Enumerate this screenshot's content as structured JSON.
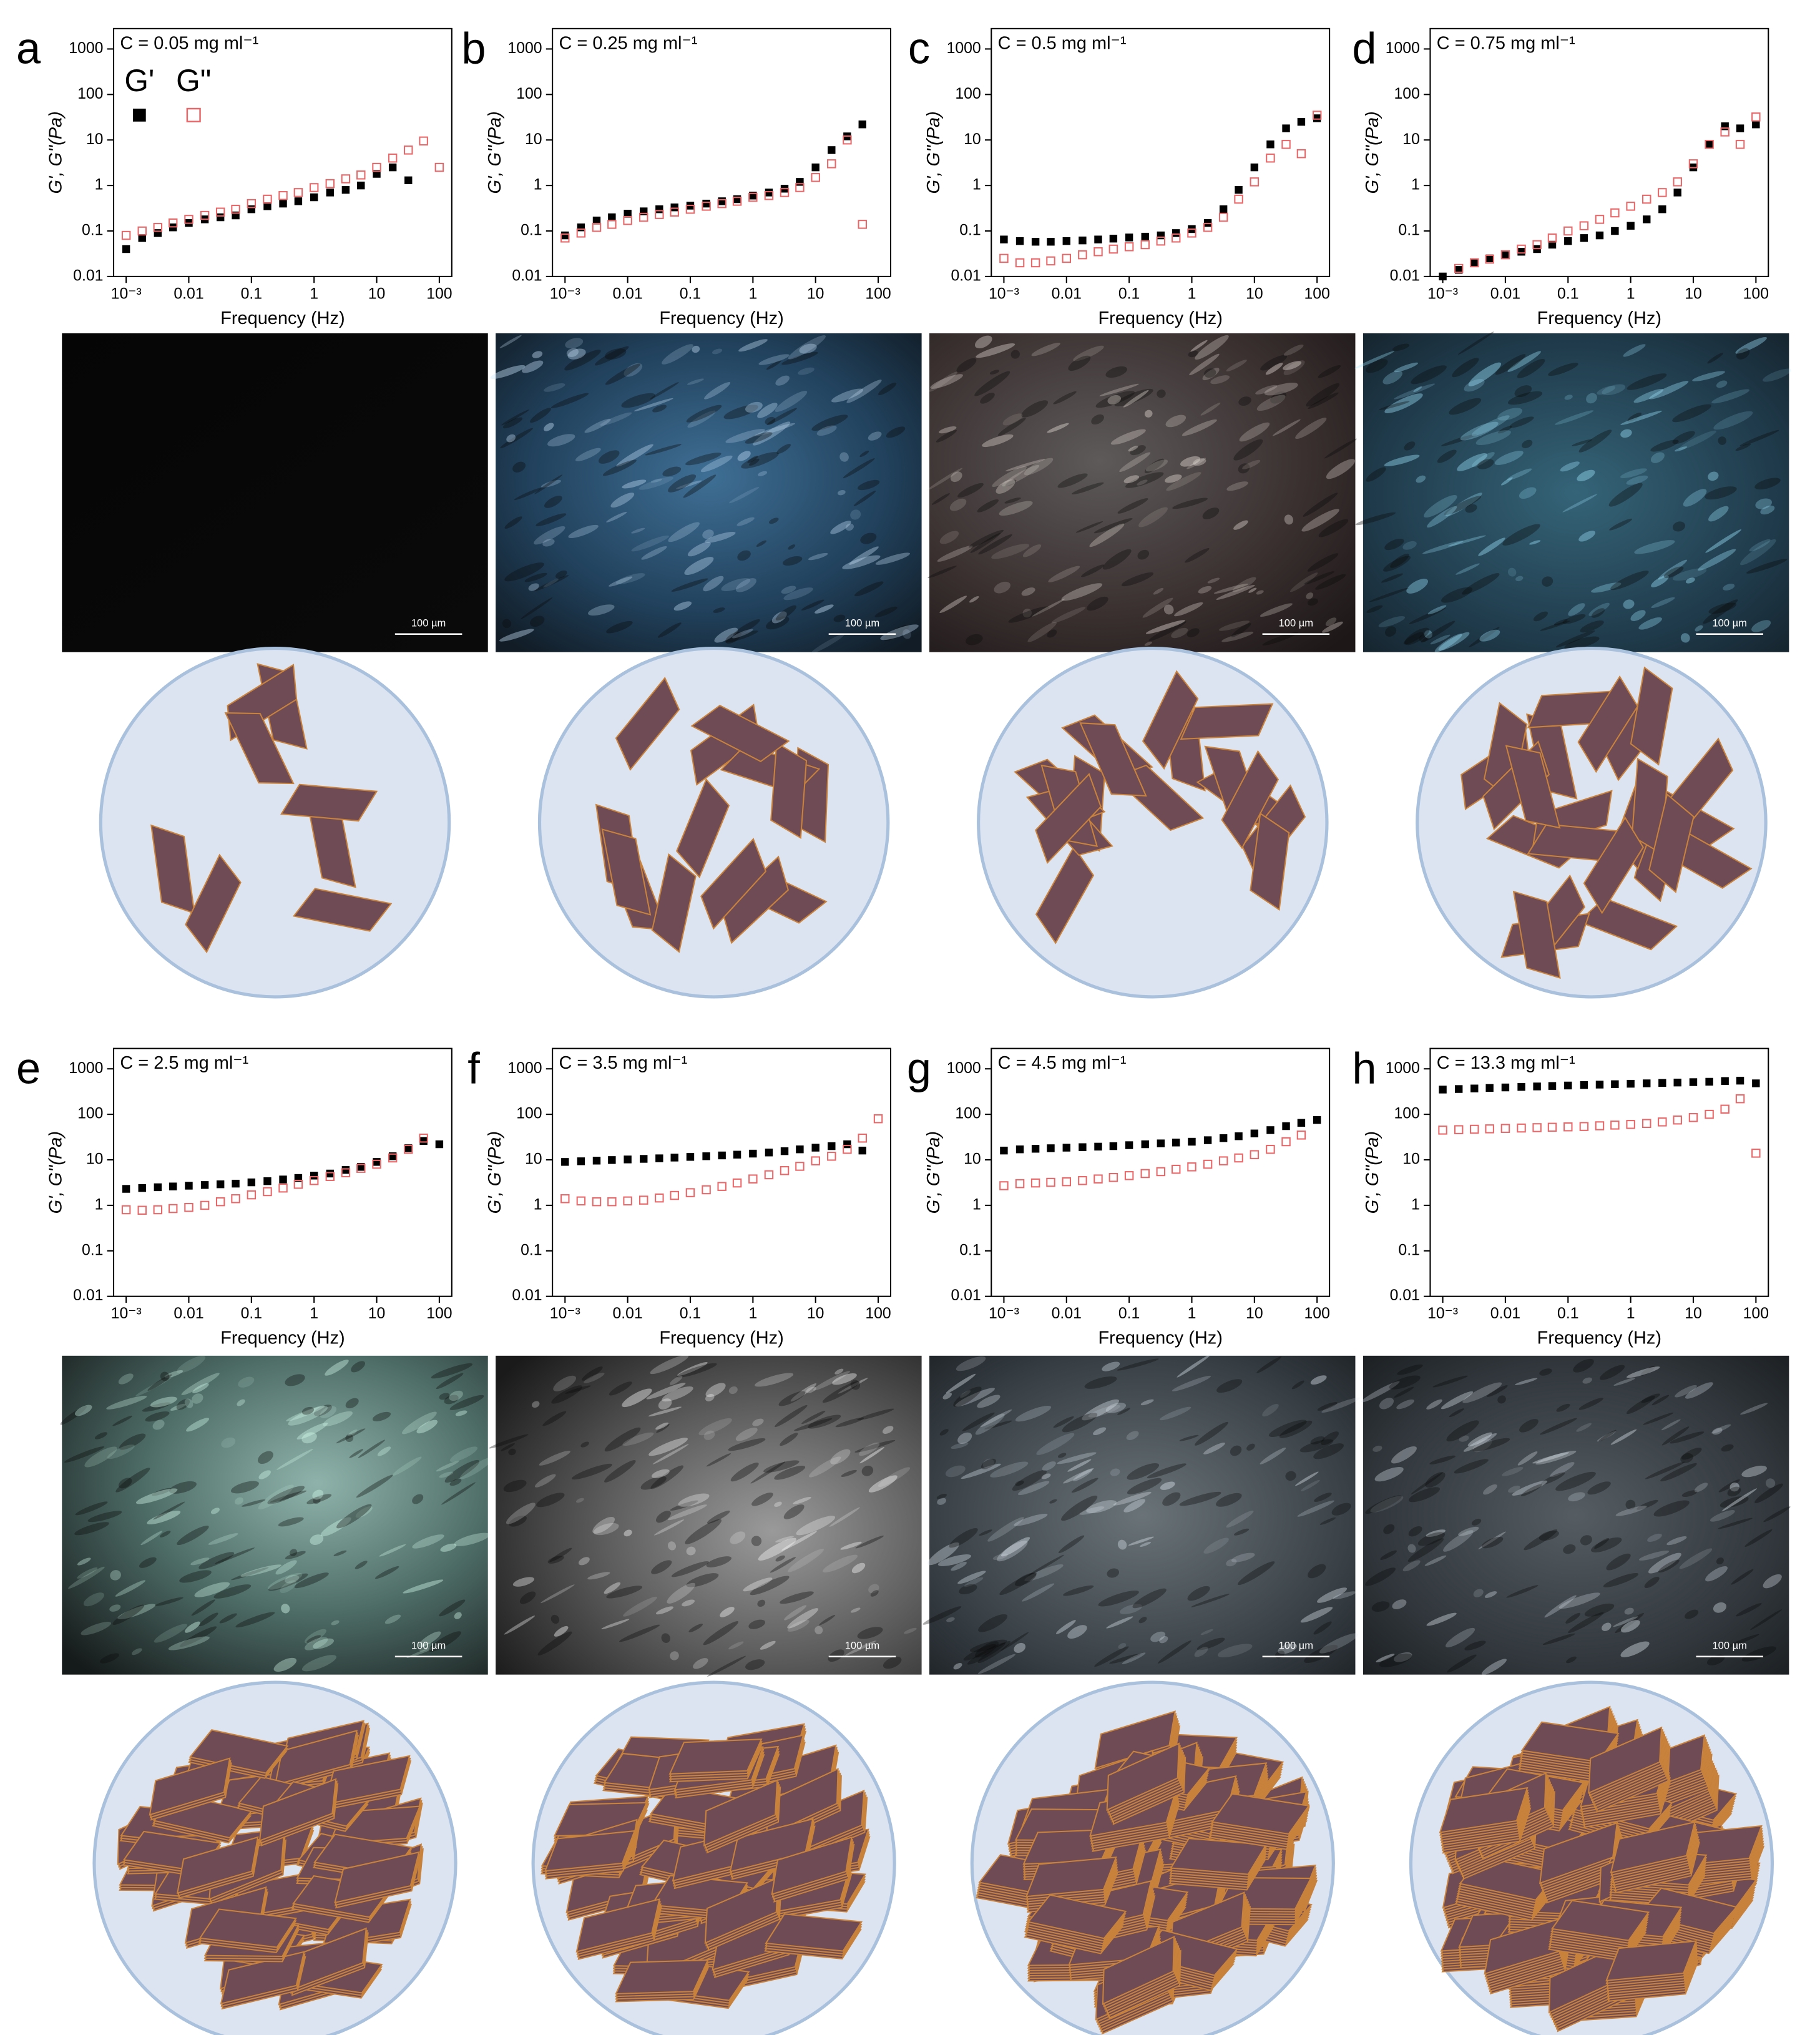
{
  "chart_data": [
    {
      "type": "scatter",
      "panel": "a",
      "annotation": "C = 0.05 mg ml⁻¹",
      "x_label": "Frequency (Hz)",
      "y_label": "G', G''(Pa)",
      "x": [
        0.001,
        0.0018,
        0.0032,
        0.0056,
        0.01,
        0.018,
        0.032,
        0.056,
        0.1,
        0.18,
        0.32,
        0.56,
        1,
        1.8,
        3.2,
        5.6,
        10,
        18,
        32,
        56,
        100
      ],
      "series": [
        {
          "name": "G'",
          "color": "#000000",
          "filled": true,
          "values": [
            0.04,
            0.07,
            0.09,
            0.12,
            0.15,
            0.18,
            0.2,
            0.22,
            0.3,
            0.35,
            0.4,
            0.45,
            0.55,
            0.7,
            0.8,
            1,
            1.8,
            2.5,
            1.3,
            null,
            null
          ]
        },
        {
          "name": "G\"",
          "color": "#e8686a",
          "filled": false,
          "values": [
            0.08,
            0.1,
            0.12,
            0.15,
            0.18,
            0.22,
            0.26,
            0.3,
            0.4,
            0.5,
            0.6,
            0.7,
            0.9,
            1.1,
            1.4,
            1.7,
            2.5,
            4,
            6,
            9.5,
            2.5
          ]
        }
      ],
      "xscale": "log",
      "yscale": "log",
      "xlim": [
        0.00063,
        158
      ],
      "ylim": [
        0.01,
        2800
      ],
      "xticks": [
        {
          "value": 0.001,
          "label": "10⁻³"
        },
        0.01,
        0.1,
        1,
        10,
        100
      ],
      "yticks": [
        0.01,
        0.1,
        1,
        10,
        100,
        1000
      ],
      "legend": "upper left"
    },
    {
      "type": "scatter",
      "panel": "b",
      "annotation": "C = 0.25 mg ml⁻¹",
      "x_label": "Frequency (Hz)",
      "y_label": "G', G''(Pa)",
      "x": [
        0.001,
        0.0018,
        0.0032,
        0.0056,
        0.01,
        0.018,
        0.032,
        0.056,
        0.1,
        0.18,
        0.32,
        0.56,
        1,
        1.8,
        3.2,
        5.6,
        10,
        18,
        32,
        56,
        100
      ],
      "series": [
        {
          "color": "#000000",
          "filled": true,
          "values": [
            0.08,
            0.12,
            0.17,
            0.2,
            0.24,
            0.27,
            0.3,
            0.33,
            0.36,
            0.4,
            0.45,
            0.5,
            0.6,
            0.7,
            0.85,
            1.2,
            2.5,
            6,
            12,
            22,
            null
          ]
        },
        {
          "color": "#e8686a",
          "filled": false,
          "values": [
            0.07,
            0.09,
            0.12,
            0.14,
            0.17,
            0.2,
            0.23,
            0.26,
            0.3,
            0.35,
            0.4,
            0.45,
            0.55,
            0.6,
            0.7,
            0.9,
            1.5,
            3,
            10,
            0.14,
            null
          ]
        }
      ],
      "xscale": "log",
      "yscale": "log",
      "xlim": [
        0.00063,
        158
      ],
      "ylim": [
        0.01,
        2800
      ],
      "xticks": [
        {
          "value": 0.001,
          "label": "10⁻³"
        },
        0.01,
        0.1,
        1,
        10,
        100
      ],
      "yticks": [
        0.01,
        0.1,
        1,
        10,
        100,
        1000
      ]
    },
    {
      "type": "scatter",
      "panel": "c",
      "annotation": "C = 0.5 mg ml⁻¹",
      "x_label": "Frequency (Hz)",
      "y_label": "G', G''(Pa)",
      "x": [
        0.001,
        0.0018,
        0.0032,
        0.0056,
        0.01,
        0.018,
        0.032,
        0.056,
        0.1,
        0.18,
        0.32,
        0.56,
        1,
        1.8,
        3.2,
        5.6,
        10,
        18,
        32,
        56,
        100
      ],
      "series": [
        {
          "color": "#000000",
          "filled": true,
          "values": [
            0.065,
            0.06,
            0.058,
            0.058,
            0.06,
            0.062,
            0.065,
            0.068,
            0.072,
            0.075,
            0.08,
            0.09,
            0.11,
            0.15,
            0.3,
            0.8,
            2.5,
            8,
            18,
            25,
            30
          ]
        },
        {
          "color": "#e8686a",
          "filled": false,
          "values": [
            0.025,
            0.02,
            0.02,
            0.022,
            0.025,
            0.03,
            0.035,
            0.04,
            0.045,
            0.05,
            0.06,
            0.07,
            0.09,
            0.12,
            0.2,
            0.5,
            1.2,
            4,
            8,
            5,
            35
          ]
        }
      ],
      "xscale": "log",
      "yscale": "log",
      "xlim": [
        0.00063,
        158
      ],
      "ylim": [
        0.01,
        2800
      ],
      "xticks": [
        {
          "value": 0.001,
          "label": "10⁻³"
        },
        0.01,
        0.1,
        1,
        10,
        100
      ],
      "yticks": [
        0.01,
        0.1,
        1,
        10,
        100,
        1000
      ]
    },
    {
      "type": "scatter",
      "panel": "d",
      "annotation": "C = 0.75 mg ml⁻¹",
      "x_label": "Frequency (Hz)",
      "y_label": "G', G''(Pa)",
      "x": [
        0.001,
        0.0018,
        0.0032,
        0.0056,
        0.01,
        0.018,
        0.032,
        0.056,
        0.1,
        0.18,
        0.32,
        0.56,
        1,
        1.8,
        3.2,
        5.6,
        10,
        18,
        32,
        56,
        100
      ],
      "series": [
        {
          "color": "#000000",
          "filled": true,
          "values": [
            0.01,
            0.014,
            0.02,
            0.025,
            0.03,
            0.035,
            0.04,
            0.05,
            0.06,
            0.07,
            0.08,
            0.1,
            0.13,
            0.18,
            0.3,
            0.7,
            2.5,
            8,
            20,
            18,
            22
          ]
        },
        {
          "color": "#e8686a",
          "filled": false,
          "values": [
            null,
            0.015,
            0.02,
            0.024,
            0.03,
            0.04,
            0.05,
            0.07,
            0.1,
            0.13,
            0.18,
            0.25,
            0.35,
            0.5,
            0.7,
            1.2,
            3,
            8,
            15,
            8,
            32
          ]
        }
      ],
      "xscale": "log",
      "yscale": "log",
      "xlim": [
        0.00063,
        158
      ],
      "ylim": [
        0.01,
        2800
      ],
      "xticks": [
        {
          "value": 0.001,
          "label": "10⁻³"
        },
        0.01,
        0.1,
        1,
        10,
        100
      ],
      "yticks": [
        0.01,
        0.1,
        1,
        10,
        100,
        1000
      ]
    },
    {
      "type": "scatter",
      "panel": "e",
      "annotation": "C = 2.5 mg ml⁻¹",
      "x_label": "Frequency (Hz)",
      "y_label": "G', G''(Pa)",
      "x": [
        0.001,
        0.0018,
        0.0032,
        0.0056,
        0.01,
        0.018,
        0.032,
        0.056,
        0.1,
        0.18,
        0.32,
        0.56,
        1,
        1.8,
        3.2,
        5.6,
        10,
        18,
        32,
        56,
        100
      ],
      "series": [
        {
          "color": "#000000",
          "filled": true,
          "values": [
            2.3,
            2.4,
            2.5,
            2.6,
            2.7,
            2.8,
            2.9,
            3,
            3.2,
            3.4,
            3.7,
            4,
            4.5,
            5,
            6,
            7,
            9,
            12,
            18,
            26,
            22
          ]
        },
        {
          "color": "#e8686a",
          "filled": false,
          "values": [
            0.8,
            0.78,
            0.8,
            0.85,
            0.9,
            1,
            1.2,
            1.4,
            1.7,
            2,
            2.4,
            2.9,
            3.5,
            4.3,
            5.2,
            6.5,
            8,
            11,
            17,
            30,
            null
          ]
        }
      ],
      "xscale": "log",
      "yscale": "log",
      "xlim": [
        0.00063,
        158
      ],
      "ylim": [
        0.01,
        2800
      ],
      "xticks": [
        {
          "value": 0.001,
          "label": "10⁻³"
        },
        0.01,
        0.1,
        1,
        10,
        100
      ],
      "yticks": [
        0.01,
        0.1,
        1,
        10,
        100,
        1000
      ]
    },
    {
      "type": "scatter",
      "panel": "f",
      "annotation": "C = 3.5 mg ml⁻¹",
      "x_label": "Frequency (Hz)",
      "y_label": "G', G''(Pa)",
      "x": [
        0.001,
        0.0018,
        0.0032,
        0.0056,
        0.01,
        0.018,
        0.032,
        0.056,
        0.1,
        0.18,
        0.32,
        0.56,
        1,
        1.8,
        3.2,
        5.6,
        10,
        18,
        32,
        56,
        100
      ],
      "series": [
        {
          "color": "#000000",
          "filled": true,
          "values": [
            9,
            9.3,
            9.6,
            9.9,
            10.2,
            10.5,
            10.8,
            11.2,
            11.6,
            12,
            12.5,
            13,
            13.7,
            14.5,
            15.5,
            17,
            18.5,
            20,
            22,
            16,
            null
          ]
        },
        {
          "color": "#e8686a",
          "filled": false,
          "values": [
            1.4,
            1.25,
            1.2,
            1.2,
            1.25,
            1.3,
            1.45,
            1.65,
            1.9,
            2.2,
            2.6,
            3.1,
            3.8,
            4.7,
            5.8,
            7.2,
            9.5,
            12,
            17,
            30,
            80
          ]
        }
      ],
      "xscale": "log",
      "yscale": "log",
      "xlim": [
        0.00063,
        158
      ],
      "ylim": [
        0.01,
        2800
      ],
      "xticks": [
        {
          "value": 0.001,
          "label": "10⁻³"
        },
        0.01,
        0.1,
        1,
        10,
        100
      ],
      "yticks": [
        0.01,
        0.1,
        1,
        10,
        100,
        1000
      ]
    },
    {
      "type": "scatter",
      "panel": "g",
      "annotation": "C = 4.5 mg ml⁻¹",
      "x_label": "Frequency (Hz)",
      "y_label": "G', G''(Pa)",
      "x": [
        0.001,
        0.0018,
        0.0032,
        0.0056,
        0.01,
        0.018,
        0.032,
        0.056,
        0.1,
        0.18,
        0.32,
        0.56,
        1,
        1.8,
        3.2,
        5.6,
        10,
        18,
        32,
        56,
        100
      ],
      "series": [
        {
          "color": "#000000",
          "filled": true,
          "values": [
            16,
            17,
            17.5,
            18,
            18.5,
            19,
            19.5,
            20,
            21,
            22,
            23,
            24,
            25,
            27,
            30,
            33,
            38,
            45,
            55,
            65,
            75
          ]
        },
        {
          "color": "#e8686a",
          "filled": false,
          "values": [
            2.7,
            3,
            3.1,
            3.2,
            3.3,
            3.5,
            3.8,
            4.1,
            4.5,
            5,
            5.5,
            6.2,
            7,
            8,
            9.5,
            11,
            13,
            17,
            25,
            35,
            null
          ]
        }
      ],
      "xscale": "log",
      "yscale": "log",
      "xlim": [
        0.00063,
        158
      ],
      "ylim": [
        0.01,
        2800
      ],
      "xticks": [
        {
          "value": 0.001,
          "label": "10⁻³"
        },
        0.01,
        0.1,
        1,
        10,
        100
      ],
      "yticks": [
        0.01,
        0.1,
        1,
        10,
        100,
        1000
      ]
    },
    {
      "type": "scatter",
      "panel": "h",
      "annotation": "C = 13.3 mg ml⁻¹",
      "x_label": "Frequency (Hz)",
      "y_label": "G', G''(Pa)",
      "x": [
        0.001,
        0.0018,
        0.0032,
        0.0056,
        0.01,
        0.018,
        0.032,
        0.056,
        0.1,
        0.18,
        0.32,
        0.56,
        1,
        1.8,
        3.2,
        5.6,
        10,
        18,
        32,
        56,
        100
      ],
      "series": [
        {
          "color": "#000000",
          "filled": true,
          "values": [
            350,
            360,
            370,
            380,
            390,
            400,
            410,
            420,
            430,
            440,
            450,
            460,
            470,
            480,
            490,
            500,
            510,
            520,
            540,
            550,
            480
          ]
        },
        {
          "color": "#e8686a",
          "filled": false,
          "values": [
            45,
            46,
            47,
            48,
            49,
            50,
            51,
            52,
            53,
            54,
            56,
            58,
            60,
            63,
            68,
            75,
            85,
            100,
            130,
            220,
            14
          ]
        }
      ],
      "xscale": "log",
      "yscale": "log",
      "xlim": [
        0.00063,
        158
      ],
      "ylim": [
        0.01,
        2800
      ],
      "xticks": [
        {
          "value": 0.001,
          "label": "10⁻³"
        },
        0.01,
        0.1,
        1,
        10,
        100
      ],
      "yticks": [
        0.01,
        0.1,
        1,
        10,
        100,
        1000
      ]
    }
  ],
  "micrographs": [
    {
      "scale_bar": "100 µm"
    },
    {
      "scale_bar": "100 µm"
    },
    {
      "scale_bar": "100 µm"
    },
    {
      "scale_bar": "100 µm"
    },
    {
      "scale_bar": "100 µm"
    },
    {
      "scale_bar": "100 µm"
    },
    {
      "scale_bar": "100 µm"
    },
    {
      "scale_bar": "100 µm"
    }
  ]
}
